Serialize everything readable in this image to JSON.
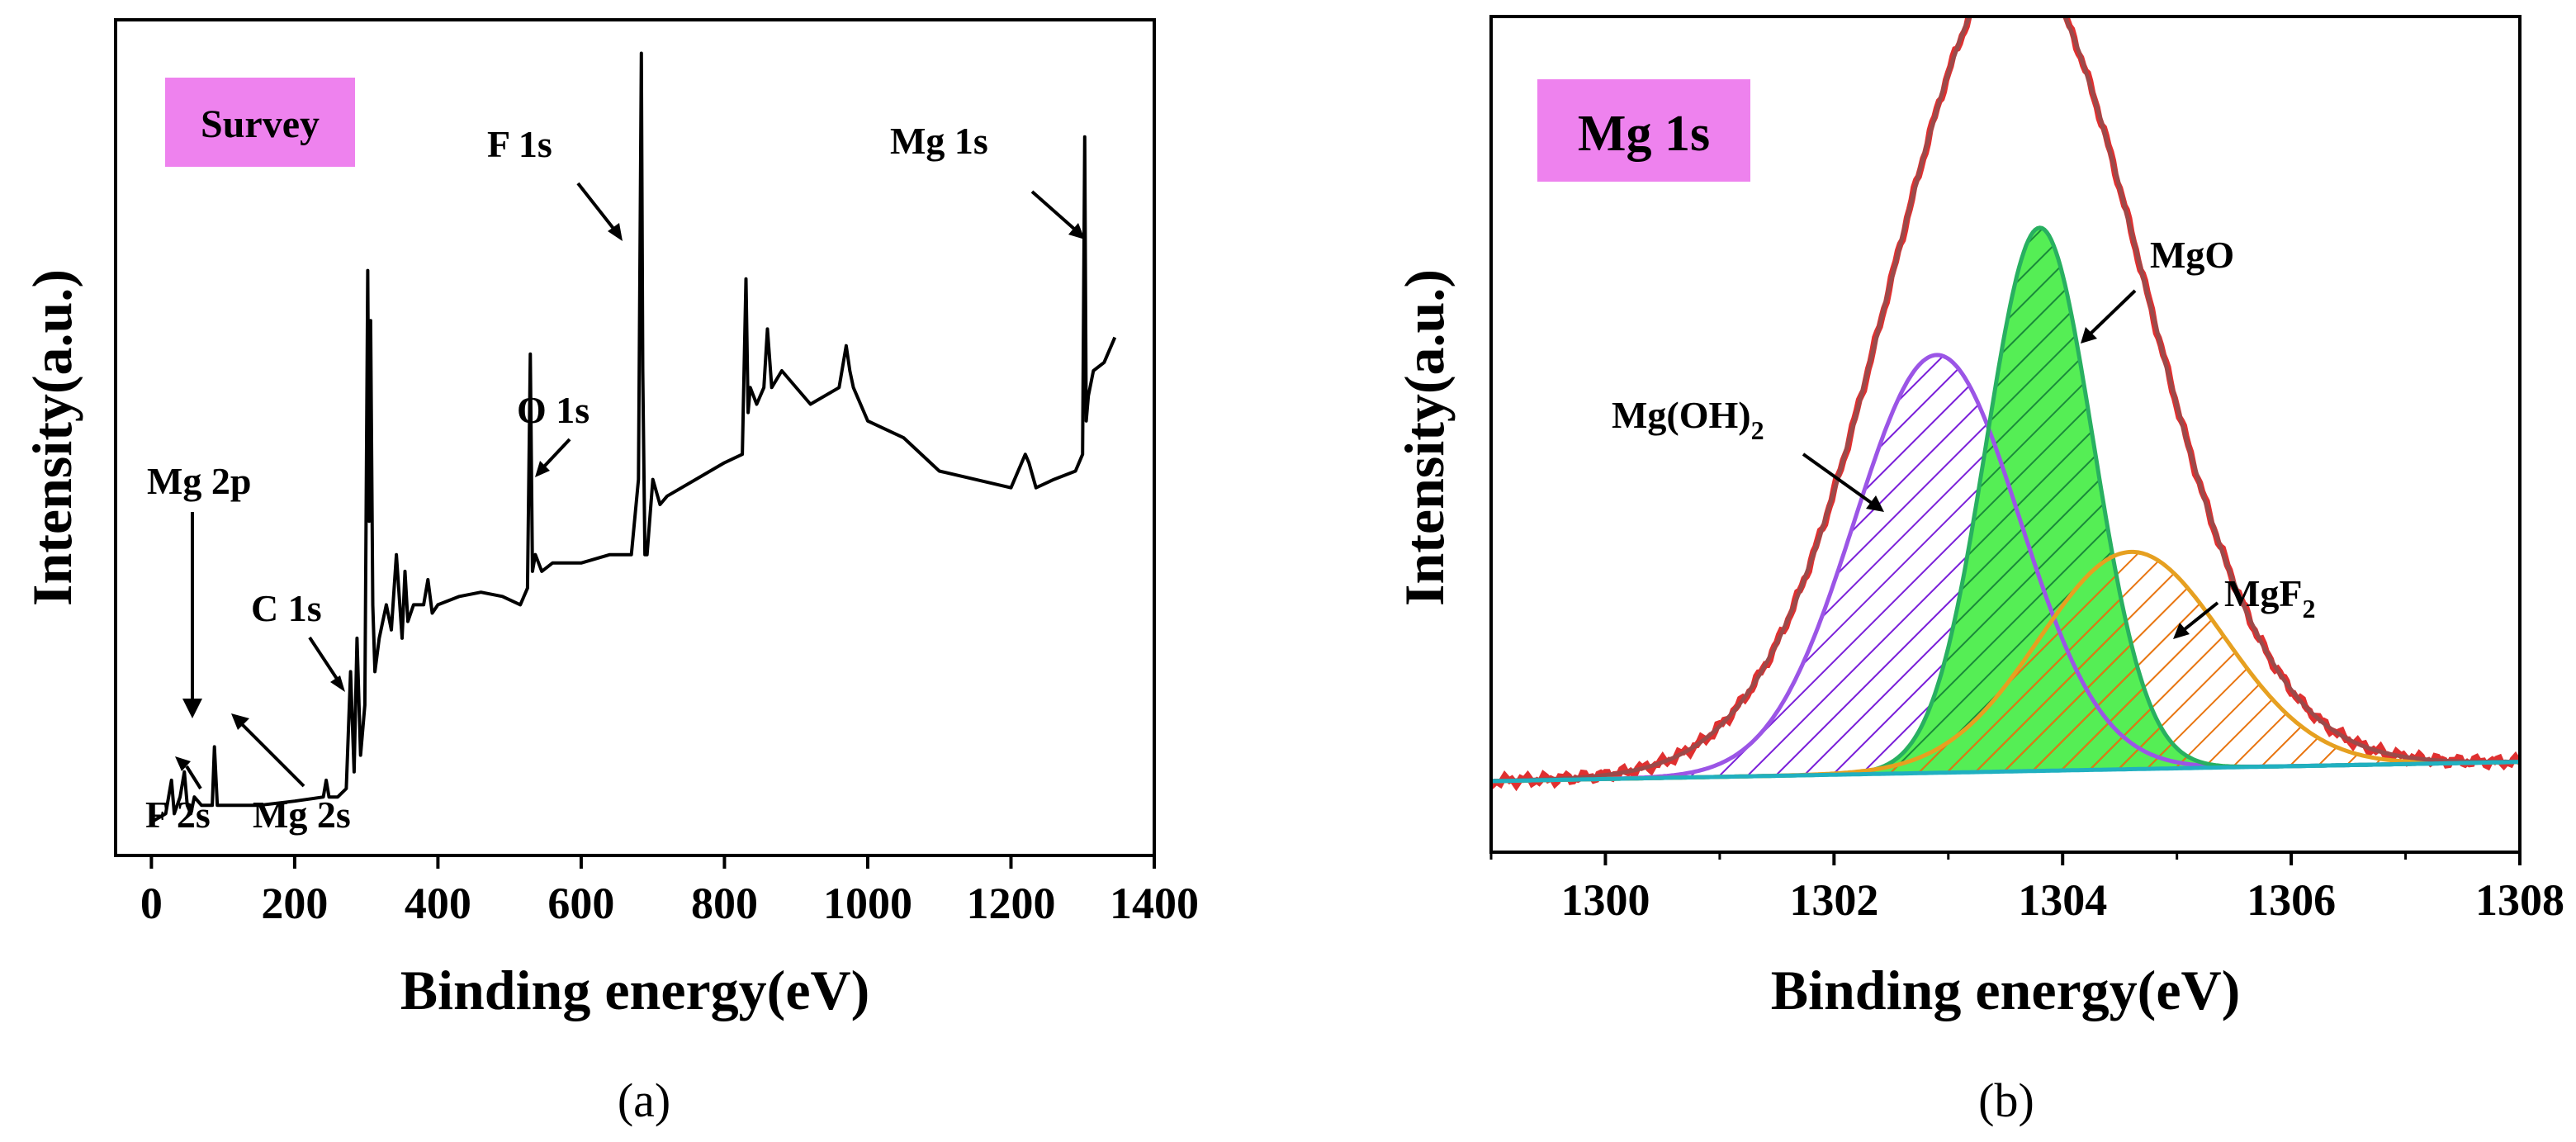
{
  "chart_data": [
    {
      "panel": "a",
      "type": "line",
      "title": "Survey",
      "xlabel": "Binding energy(eV)",
      "ylabel": "Intensity(a.u.)",
      "xlim": [
        -50,
        1400
      ],
      "ylim": [
        0,
        100
      ],
      "yticks_shown": false,
      "xticks": [
        0,
        200,
        400,
        600,
        800,
        1000,
        1200,
        1400
      ],
      "xtick_labels": [
        "0",
        "200",
        "400",
        "600",
        "800",
        "1000",
        "1200",
        "1400"
      ],
      "panel_label": "(a)",
      "series": [
        {
          "name": "Survey spectrum",
          "x": [
            0,
            20,
            28,
            32,
            40,
            46,
            50,
            55,
            60,
            70,
            85,
            88,
            92,
            110,
            150,
            200,
            240,
            244,
            248,
            260,
            272,
            278,
            283,
            287,
            292,
            298,
            302,
            304,
            306,
            309,
            312,
            318,
            328,
            335,
            342,
            350,
            354,
            358,
            366,
            380,
            386,
            392,
            400,
            430,
            460,
            490,
            515,
            525,
            529,
            532,
            536,
            545,
            560,
            600,
            640,
            670,
            680,
            684,
            686,
            689,
            692,
            700,
            710,
            720,
            760,
            800,
            825,
            830,
            833,
            836,
            845,
            855,
            860,
            866,
            880,
            920,
            960,
            970,
            975,
            980,
            1000,
            1050,
            1100,
            1150,
            1200,
            1220,
            1225,
            1235,
            1260,
            1290,
            1300,
            1303,
            1305,
            1308,
            1315,
            1330,
            1345
          ],
          "y": [
            4,
            5,
            9,
            5,
            7,
            10,
            6,
            5,
            7,
            6,
            6,
            13,
            6,
            6,
            6,
            6.5,
            7,
            9,
            7,
            7,
            8,
            22,
            10,
            26,
            12,
            18,
            70,
            40,
            64,
            30,
            22,
            26,
            30,
            27,
            36,
            26,
            34,
            28,
            30,
            30,
            33,
            29,
            30,
            31,
            31.5,
            31,
            30,
            32,
            60,
            34,
            36,
            34,
            35,
            35,
            36,
            36,
            45,
            96,
            58,
            36,
            36,
            45,
            42,
            43,
            45,
            47,
            48,
            69,
            53,
            56,
            54,
            56,
            63,
            56,
            58,
            54,
            56,
            61,
            58,
            56,
            52,
            50,
            46,
            45,
            44,
            48,
            47,
            44,
            45,
            46,
            48,
            86,
            52,
            55,
            58,
            59,
            62
          ]
        }
      ],
      "annotations": [
        "Mg 2p",
        "F 2s",
        "Mg 2s",
        "C 1s",
        "O 1s",
        "F 1s",
        "Mg 1s"
      ]
    },
    {
      "panel": "b",
      "type": "area",
      "title": "Mg 1s",
      "xlabel": "Binding energy(eV)",
      "ylabel": "Intensity(a.u.)",
      "xlim": [
        1299,
        1308
      ],
      "ylim": [
        0,
        100
      ],
      "yticks_shown": false,
      "xticks": [
        1300,
        1302,
        1304,
        1306,
        1308
      ],
      "xtick_labels": [
        "1300",
        "1302",
        "1304",
        "1306",
        "1308"
      ],
      "panel_label": "(b)",
      "baseline": {
        "y_at_1299": 8.5,
        "y_at_1308": 10.8
      },
      "series": [
        {
          "name": "Envelope",
          "type": "line",
          "center": 1303.6,
          "fwhm": 2.6,
          "amplitude": 97
        },
        {
          "name": "Mg(OH)2",
          "type": "gaussian",
          "center": 1302.9,
          "fwhm": 1.7,
          "amplitude": 50
        },
        {
          "name": "MgO",
          "type": "gaussian",
          "center": 1303.8,
          "fwhm": 1.1,
          "amplitude": 65
        },
        {
          "name": "MgF2",
          "type": "gaussian",
          "center": 1304.6,
          "fwhm": 1.9,
          "amplitude": 26
        }
      ],
      "labels": {
        "mgoh2_main": "Mg(OH)",
        "mgoh2_sub": "2",
        "mgo": "MgO",
        "mgf2_main": "MgF",
        "mgf2_sub": "2"
      }
    }
  ],
  "colors": {
    "title_box": "#ee82ee",
    "survey_line": "#000000",
    "envelope": "#9b4a4a",
    "raw_data": "#e03030",
    "mgoh2": "#9b55e6",
    "mgoh2_hatch": "#7a1fd9",
    "mgo": "#28b060",
    "mgo_fill": "#55ee55",
    "mgo_hatch": "#1a8a3a",
    "mgf2": "#e6a020",
    "mgf2_hatch": "#e87510",
    "baseline": "#20b0c0"
  }
}
